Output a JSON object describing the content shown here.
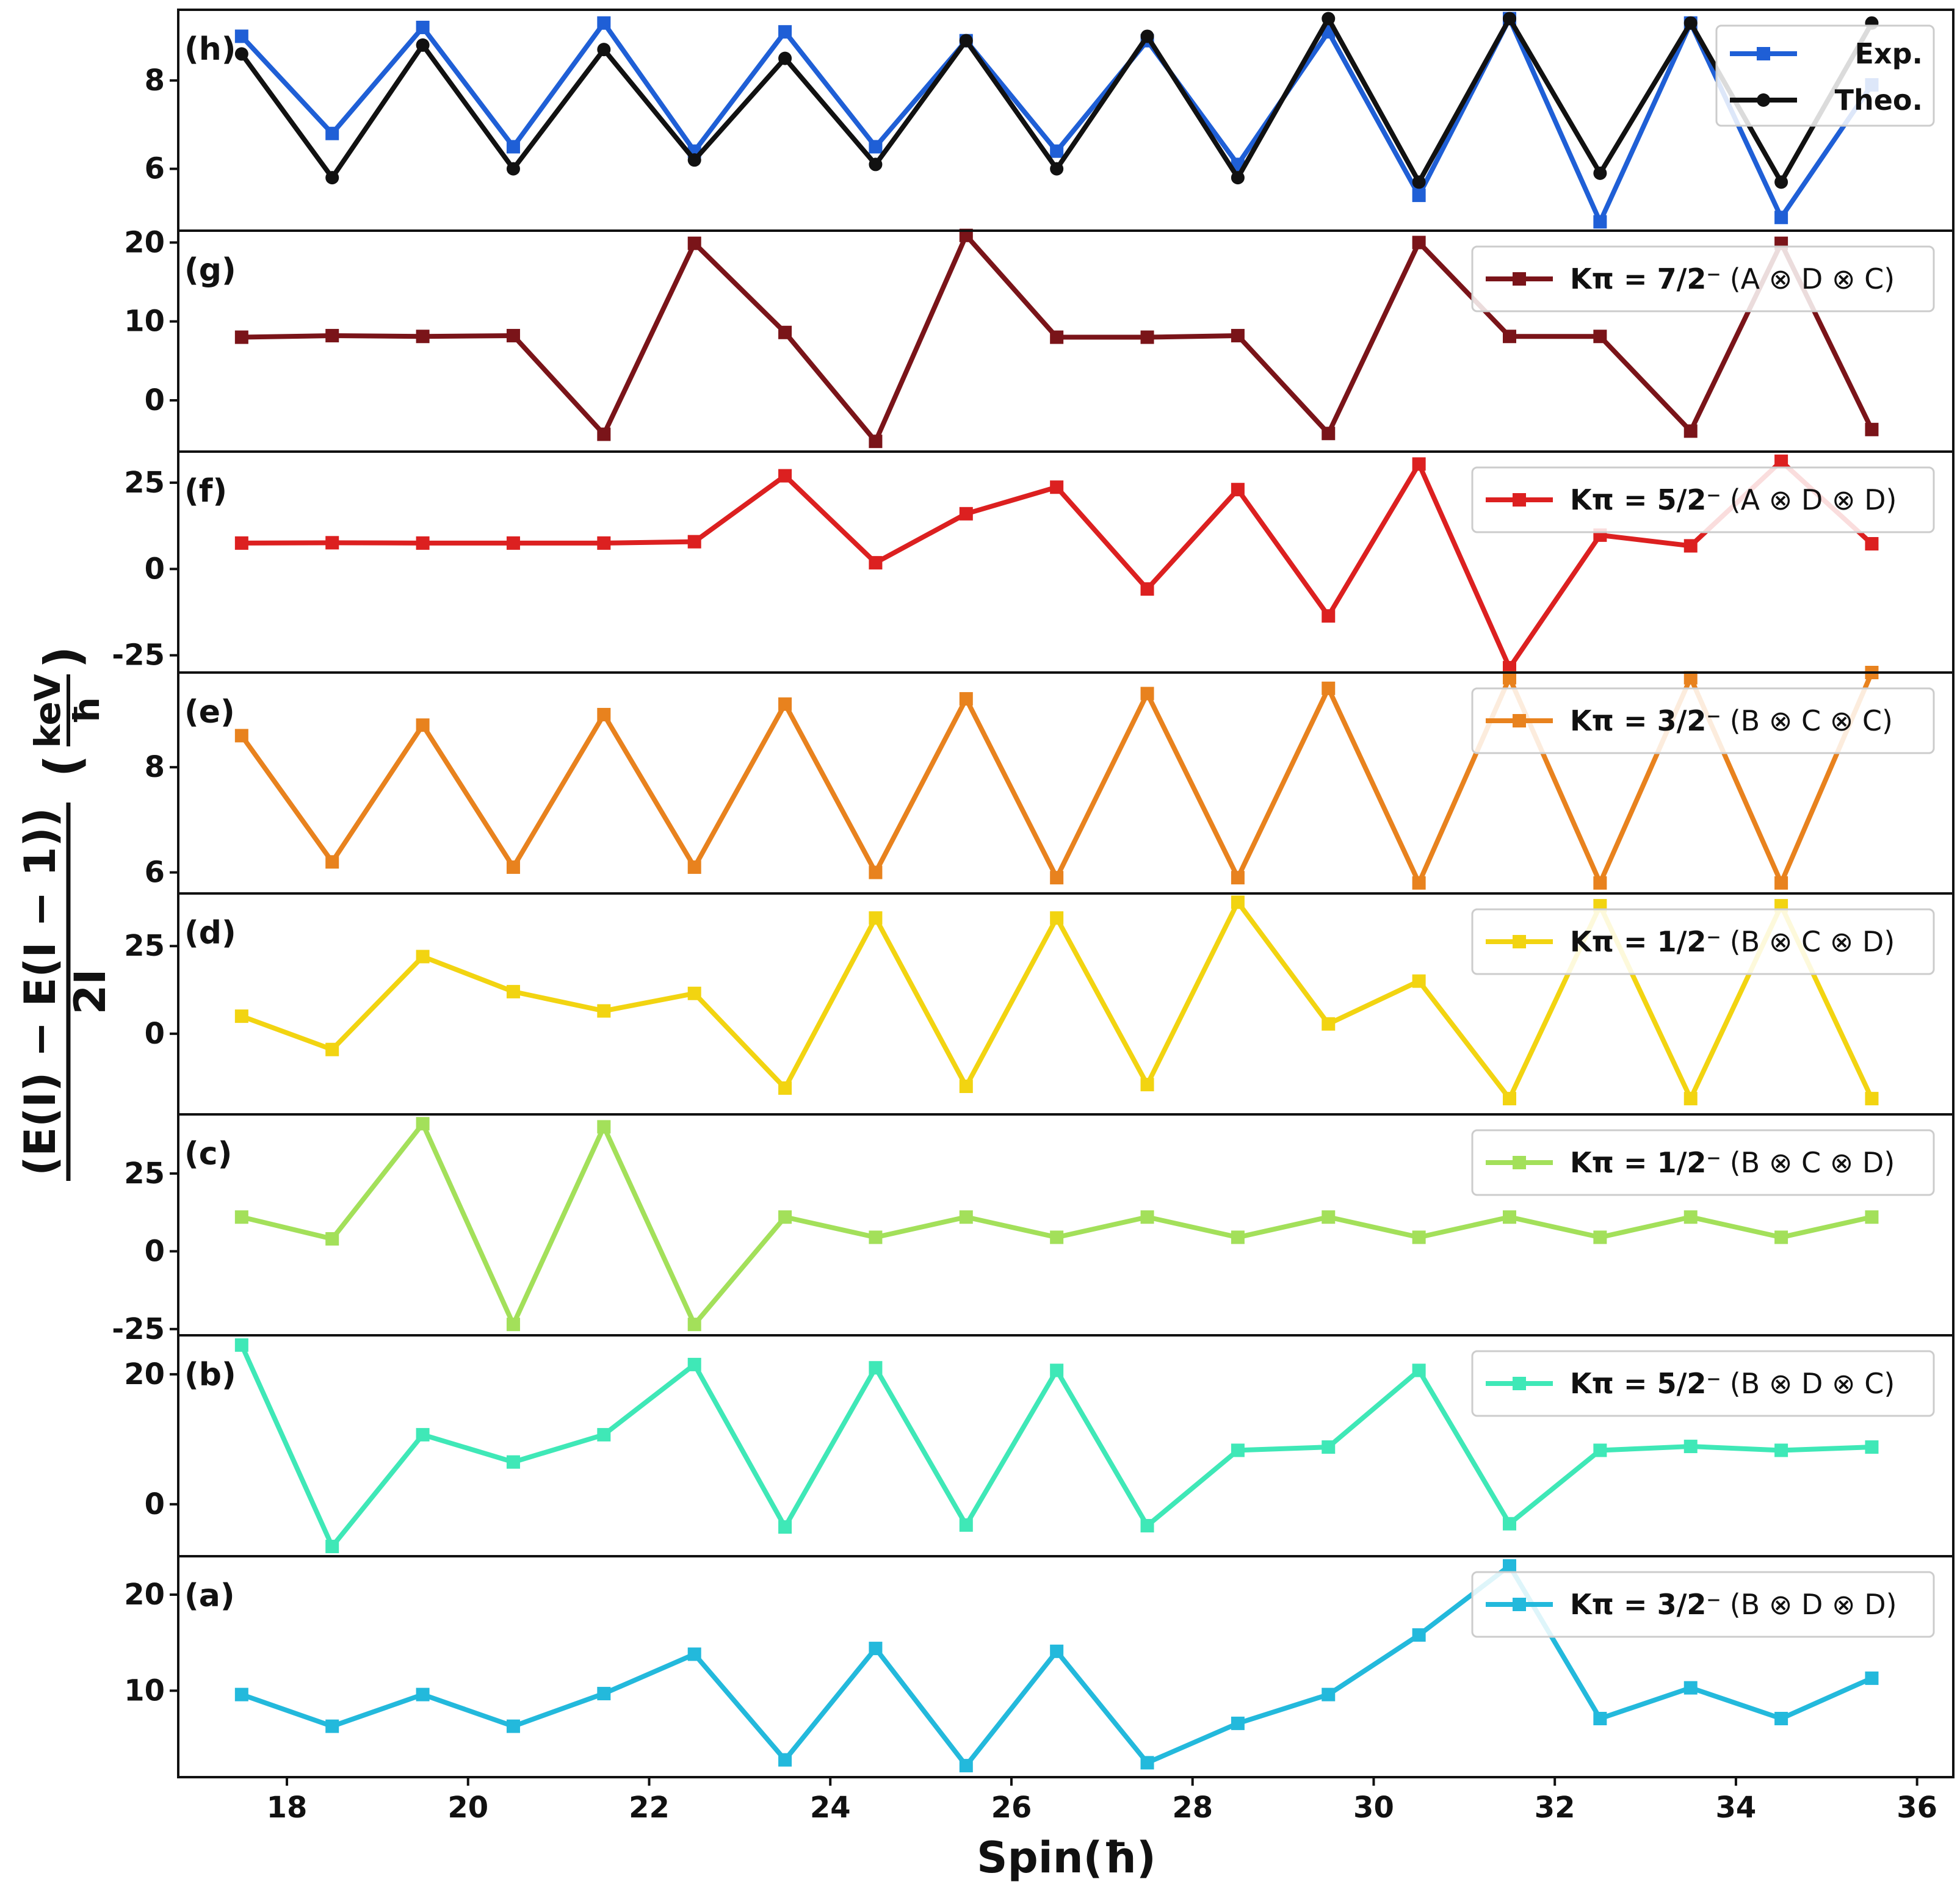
{
  "chart_data": {
    "type": "line",
    "xlabel": "Spin(ħ)",
    "ylabel": {
      "numerator": "(E(I) − E(I − 1))",
      "denominator": "2I",
      "unit_numerator": "keV",
      "unit_denominator": "ħ"
    },
    "x_ticks": [
      18,
      20,
      22,
      24,
      26,
      28,
      30,
      32,
      34,
      36
    ],
    "xlim": [
      16.8,
      36.4
    ],
    "x": [
      17.5,
      18.5,
      19.5,
      20.5,
      21.5,
      22.5,
      23.5,
      24.5,
      25.5,
      26.5,
      27.5,
      28.5,
      29.5,
      30.5,
      31.5,
      32.5,
      33.5,
      34.5,
      35.5
    ],
    "panels": [
      {
        "label": "(h)",
        "ylim": [
          4.6,
          9.6
        ],
        "yticks": [
          6,
          8
        ],
        "legend_loc": "upper right",
        "series": [
          {
            "name": "Exp.",
            "color": "#1f5fd6",
            "marker": "square",
            "values": [
              9.0,
              6.8,
              9.2,
              6.5,
              9.3,
              6.4,
              9.1,
              6.5,
              8.9,
              6.4,
              8.9,
              6.1,
              9.1,
              5.4,
              9.4,
              4.8,
              9.3,
              4.9,
              7.9
            ]
          },
          {
            "name": "Theo.",
            "color": "#111111",
            "marker": "circle",
            "values": [
              8.6,
              5.8,
              8.8,
              6.0,
              8.7,
              6.2,
              8.5,
              6.1,
              8.9,
              6.0,
              9.0,
              5.8,
              9.4,
              5.7,
              9.4,
              5.9,
              9.3,
              5.7,
              9.3
            ]
          }
        ]
      },
      {
        "label": "(g)",
        "ylim": [
          -6.5,
          21.5
        ],
        "yticks": [
          0,
          10,
          20
        ],
        "legend_loc": "upper right",
        "series": [
          {
            "name": "Kπ = 7/2⁻ (A ⊗ D ⊗ C)",
            "legend_bold": "Kπ = 7/2⁻",
            "legend_rest": "(A ⊗ D ⊗ C)",
            "color": "#7a1419",
            "marker": "square",
            "values": [
              8.0,
              8.2,
              8.1,
              8.2,
              -4.3,
              19.9,
              8.6,
              -5.2,
              20.9,
              8.0,
              8.0,
              8.2,
              -4.2,
              20.0,
              8.1,
              8.1,
              -3.9,
              19.9,
              -3.7
            ]
          }
        ]
      },
      {
        "label": "(f)",
        "ylim": [
          -30,
          34
        ],
        "yticks": [
          -25,
          0,
          25
        ],
        "legend_loc": "upper right",
        "series": [
          {
            "name": "Kπ = 5/2⁻ (A ⊗ D ⊗ D)",
            "legend_bold": "Kπ = 5/2⁻",
            "legend_rest": "(A ⊗ D ⊗ D)",
            "color": "#dc2020",
            "marker": "square",
            "values": [
              7.5,
              7.6,
              7.5,
              7.5,
              7.5,
              7.9,
              27.0,
              1.8,
              16.0,
              23.7,
              -5.8,
              23.0,
              -13.6,
              30.4,
              -28.6,
              9.8,
              6.7,
              31.2,
              7.3
            ]
          }
        ]
      },
      {
        "label": "(e)",
        "ylim": [
          5.6,
          9.8
        ],
        "yticks": [
          6,
          8
        ],
        "legend_loc": "upper right",
        "series": [
          {
            "name": "Kπ = 3/2⁻ (B ⊗ C ⊗ C)",
            "legend_bold": "Kπ = 3/2⁻",
            "legend_rest": "(B ⊗ C ⊗ C)",
            "color": "#e8821e",
            "marker": "square",
            "values": [
              8.6,
              6.2,
              8.8,
              6.1,
              9.0,
              6.1,
              9.2,
              6.0,
              9.3,
              5.9,
              9.4,
              5.9,
              9.5,
              5.8,
              9.7,
              5.8,
              9.7,
              5.8,
              9.8
            ]
          }
        ]
      },
      {
        "label": "(d)",
        "ylim": [
          -23,
          40
        ],
        "yticks": [
          0,
          25
        ],
        "legend_loc": "upper right",
        "series": [
          {
            "name": "Kπ = 1/2⁻ (B ⊗ C ⊗ D)",
            "legend_bold": "Kπ = 1/2⁻",
            "legend_rest": "(B ⊗ C ⊗ D)",
            "color": "#f2d411",
            "marker": "square",
            "values": [
              5.0,
              -4.5,
              22.0,
              12.0,
              6.5,
              11.5,
              -15.5,
              33.0,
              -15.0,
              33.0,
              -14.5,
              37.5,
              2.8,
              15.0,
              -18.5,
              36.5,
              -18.5,
              36.5,
              -18.5
            ]
          }
        ]
      },
      {
        "label": "(c)",
        "ylim": [
          -27,
          44
        ],
        "yticks": [
          -25,
          0,
          25
        ],
        "legend_loc": "upper right",
        "series": [
          {
            "name": "Kπ = 1/2⁻ (B ⊗ C ⊗ D)",
            "legend_bold": "Kπ = 1/2⁻",
            "legend_rest": "(B ⊗ C ⊗ D)",
            "color": "#a3e05a",
            "marker": "square",
            "values": [
              11.0,
              4.0,
              41.0,
              -23.5,
              40.0,
              -23.5,
              11.0,
              4.5,
              11.0,
              4.5,
              11.0,
              4.5,
              11.0,
              4.5,
              11.0,
              4.5,
              11.0,
              4.5,
              11.0
            ]
          }
        ]
      },
      {
        "label": "(b)",
        "ylim": [
          -8,
          26
        ],
        "yticks": [
          0,
          20
        ],
        "legend_loc": "upper right",
        "series": [
          {
            "name": "Kπ = 5/2⁻ (B ⊗ D ⊗ C)",
            "legend_bold": "Kπ = 5/2⁻",
            "legend_rest": "(B ⊗ D ⊗ C)",
            "color": "#3fe8b7",
            "marker": "square",
            "values": [
              24.5,
              -6.5,
              10.7,
              6.5,
              10.7,
              21.5,
              -3.5,
              21.0,
              -3.2,
              20.6,
              -3.3,
              8.3,
              8.8,
              20.6,
              -3.0,
              8.3,
              8.9,
              8.3,
              8.8
            ]
          }
        ]
      },
      {
        "label": "(a)",
        "ylim": [
          1,
          24
        ],
        "yticks": [
          10,
          20
        ],
        "legend_loc": "upper right",
        "series": [
          {
            "name": "Kπ = 3/2⁻ (B ⊗ D ⊗ D)",
            "legend_bold": "Kπ = 3/2⁻",
            "legend_rest": "(B ⊗ D ⊗ D)",
            "color": "#23b9dc",
            "marker": "square",
            "values": [
              9.6,
              6.3,
              9.6,
              6.3,
              9.7,
              13.8,
              2.8,
              14.4,
              2.2,
              14.1,
              2.5,
              6.6,
              9.6,
              15.8,
              23.0,
              7.1,
              10.3,
              7.1,
              11.3
            ]
          }
        ]
      }
    ]
  }
}
